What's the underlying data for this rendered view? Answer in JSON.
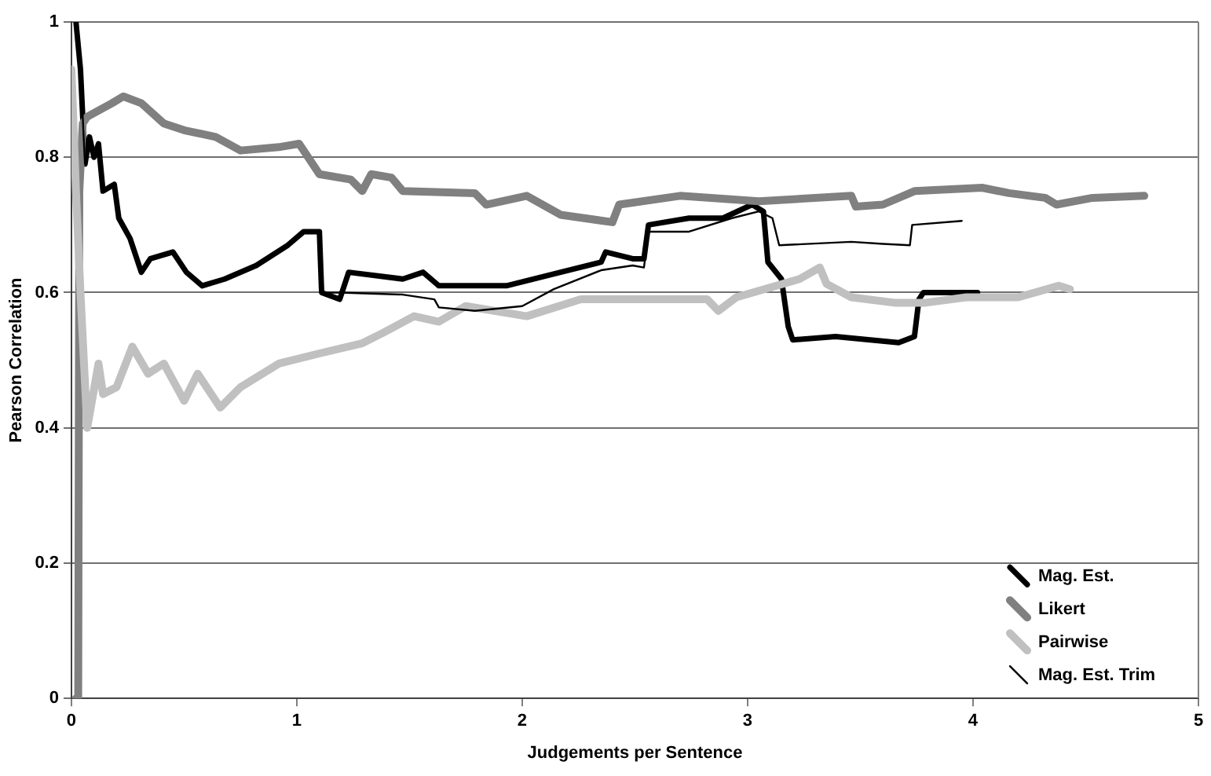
{
  "chart_data": {
    "type": "line",
    "xlabel": "Judgements per Sentence",
    "ylabel": "Pearson Correlation",
    "xlim": [
      0,
      5
    ],
    "xticks": [
      0,
      1,
      2,
      3,
      4,
      5
    ],
    "ylim": [
      0,
      1
    ],
    "yticks": [
      0,
      0.2,
      0.4,
      0.6,
      0.8,
      1
    ],
    "grid": "y",
    "legend": "bottom right",
    "marker": "none",
    "line_style": "solid",
    "series": [
      {
        "name": "Mag. Est.",
        "color": "#000000",
        "x": [
          0.02,
          0.04,
          0.06,
          0.08,
          0.1,
          0.12,
          0.14,
          0.19,
          0.21,
          0.26,
          0.31,
          0.35,
          0.45,
          0.51,
          0.58,
          0.68,
          0.82,
          0.96,
          1.03,
          1.1,
          1.11,
          1.19,
          1.23,
          1.47,
          1.56,
          1.63,
          1.79,
          1.93,
          2.17,
          2.35,
          2.37,
          2.49,
          2.54,
          2.56,
          2.74,
          2.89,
          3.02,
          3.07,
          3.09,
          3.15,
          3.18,
          3.2,
          3.39,
          3.67,
          3.74,
          3.76,
          3.78,
          4.02
        ],
        "values": [
          1.0,
          0.93,
          0.79,
          0.83,
          0.8,
          0.82,
          0.75,
          0.76,
          0.71,
          0.68,
          0.63,
          0.65,
          0.66,
          0.63,
          0.61,
          0.62,
          0.64,
          0.67,
          0.69,
          0.69,
          0.6,
          0.59,
          0.63,
          0.62,
          0.63,
          0.61,
          0.61,
          0.61,
          0.63,
          0.645,
          0.66,
          0.65,
          0.65,
          0.7,
          0.71,
          0.71,
          0.73,
          0.72,
          0.645,
          0.62,
          0.55,
          0.53,
          0.535,
          0.526,
          0.535,
          0.59,
          0.6,
          0.6
        ]
      },
      {
        "name": "Likert",
        "color": "#808080",
        "x": [
          0.02,
          0.03,
          0.035,
          0.05,
          0.07,
          0.18,
          0.23,
          0.31,
          0.41,
          0.5,
          0.64,
          0.75,
          0.92,
          1.01,
          1.06,
          1.1,
          1.24,
          1.29,
          1.33,
          1.42,
          1.47,
          1.79,
          1.84,
          2.02,
          2.17,
          2.4,
          2.43,
          2.7,
          3.05,
          3.46,
          3.48,
          3.6,
          3.74,
          4.04,
          4.16,
          4.32,
          4.37,
          4.53,
          4.76
        ],
        "values": [
          0.0,
          0.0,
          0.75,
          0.85,
          0.86,
          0.88,
          0.89,
          0.88,
          0.85,
          0.84,
          0.83,
          0.81,
          0.815,
          0.82,
          0.795,
          0.775,
          0.767,
          0.75,
          0.775,
          0.77,
          0.75,
          0.747,
          0.73,
          0.743,
          0.715,
          0.704,
          0.73,
          0.743,
          0.735,
          0.743,
          0.727,
          0.73,
          0.75,
          0.755,
          0.747,
          0.74,
          0.73,
          0.74,
          0.743
        ]
      },
      {
        "name": "Pairwise",
        "color": "#c0c0c0",
        "x": [
          0.0,
          0.02,
          0.04,
          0.07,
          0.12,
          0.14,
          0.2,
          0.27,
          0.34,
          0.41,
          0.5,
          0.56,
          0.66,
          0.75,
          0.92,
          1.1,
          1.29,
          1.38,
          1.52,
          1.63,
          1.75,
          2.02,
          2.26,
          2.49,
          2.82,
          2.87,
          2.95,
          3.23,
          3.32,
          3.35,
          3.46,
          3.65,
          3.79,
          3.97,
          4.2,
          4.38,
          4.43
        ],
        "values": [
          0.93,
          0.75,
          0.6,
          0.4,
          0.495,
          0.45,
          0.46,
          0.52,
          0.48,
          0.495,
          0.44,
          0.48,
          0.43,
          0.46,
          0.495,
          0.51,
          0.525,
          0.54,
          0.565,
          0.557,
          0.58,
          0.565,
          0.59,
          0.59,
          0.59,
          0.573,
          0.593,
          0.62,
          0.637,
          0.613,
          0.593,
          0.585,
          0.585,
          0.593,
          0.593,
          0.61,
          0.605
        ]
      },
      {
        "name": "Mag. Est. Trim",
        "color": "#000000",
        "x": [
          0.02,
          0.04,
          0.06,
          0.08,
          0.1,
          0.12,
          0.14,
          0.19,
          0.21,
          0.26,
          0.31,
          0.35,
          0.45,
          0.51,
          0.58,
          0.68,
          0.82,
          0.96,
          1.03,
          1.1,
          1.11,
          1.19,
          1.47,
          1.61,
          1.63,
          1.79,
          2.0,
          2.14,
          2.35,
          2.49,
          2.54,
          2.56,
          2.74,
          2.93,
          3.05,
          3.11,
          3.14,
          3.46,
          3.6,
          3.72,
          3.73,
          3.95
        ],
        "values": [
          1.0,
          0.93,
          0.79,
          0.83,
          0.8,
          0.82,
          0.75,
          0.76,
          0.71,
          0.68,
          0.63,
          0.65,
          0.66,
          0.63,
          0.61,
          0.62,
          0.64,
          0.67,
          0.69,
          0.69,
          0.6,
          0.6,
          0.597,
          0.59,
          0.578,
          0.573,
          0.58,
          0.605,
          0.633,
          0.64,
          0.637,
          0.69,
          0.69,
          0.71,
          0.72,
          0.71,
          0.67,
          0.675,
          0.672,
          0.67,
          0.7,
          0.706
        ]
      }
    ]
  }
}
